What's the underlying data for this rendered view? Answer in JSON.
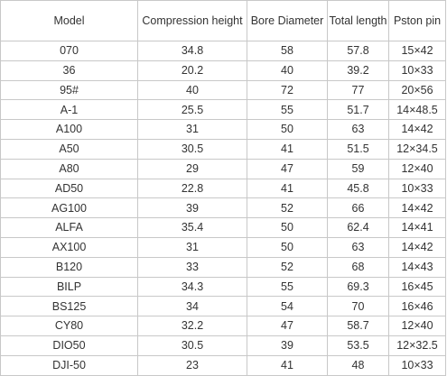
{
  "table": {
    "headers": [
      "Model",
      "Compression height",
      "Bore Diameter",
      "Total length",
      "Pston pin"
    ],
    "rows": [
      [
        "070",
        "34.8",
        "58",
        "57.8",
        "15×42"
      ],
      [
        "36",
        "20.2",
        "40",
        "39.2",
        "10×33"
      ],
      [
        "95#",
        "40",
        "72",
        "77",
        "20×56"
      ],
      [
        "A-1",
        "25.5",
        "55",
        "51.7",
        "14×48.5"
      ],
      [
        "A100",
        "31",
        "50",
        "63",
        "14×42"
      ],
      [
        "A50",
        "30.5",
        "41",
        "51.5",
        "12×34.5"
      ],
      [
        "A80",
        "29",
        "47",
        "59",
        "12×40"
      ],
      [
        "AD50",
        "22.8",
        "41",
        "45.8",
        "10×33"
      ],
      [
        "AG100",
        "39",
        "52",
        "66",
        "14×42"
      ],
      [
        "ALFA",
        "35.4",
        "50",
        "62.4",
        "14×41"
      ],
      [
        "AX100",
        "31",
        "50",
        "63",
        "14×42"
      ],
      [
        "B120",
        "33",
        "52",
        "68",
        "14×43"
      ],
      [
        "BILP",
        "34.3",
        "55",
        "69.3",
        "16×45"
      ],
      [
        "BS125",
        "34",
        "54",
        "70",
        "16×46"
      ],
      [
        "CY80",
        "32.2",
        "47",
        "58.7",
        "12×40"
      ],
      [
        "DIO50",
        "30.5",
        "39",
        "53.5",
        "12×32.5"
      ],
      [
        "DJI-50",
        "23",
        "41",
        "48",
        "10×33"
      ]
    ]
  }
}
